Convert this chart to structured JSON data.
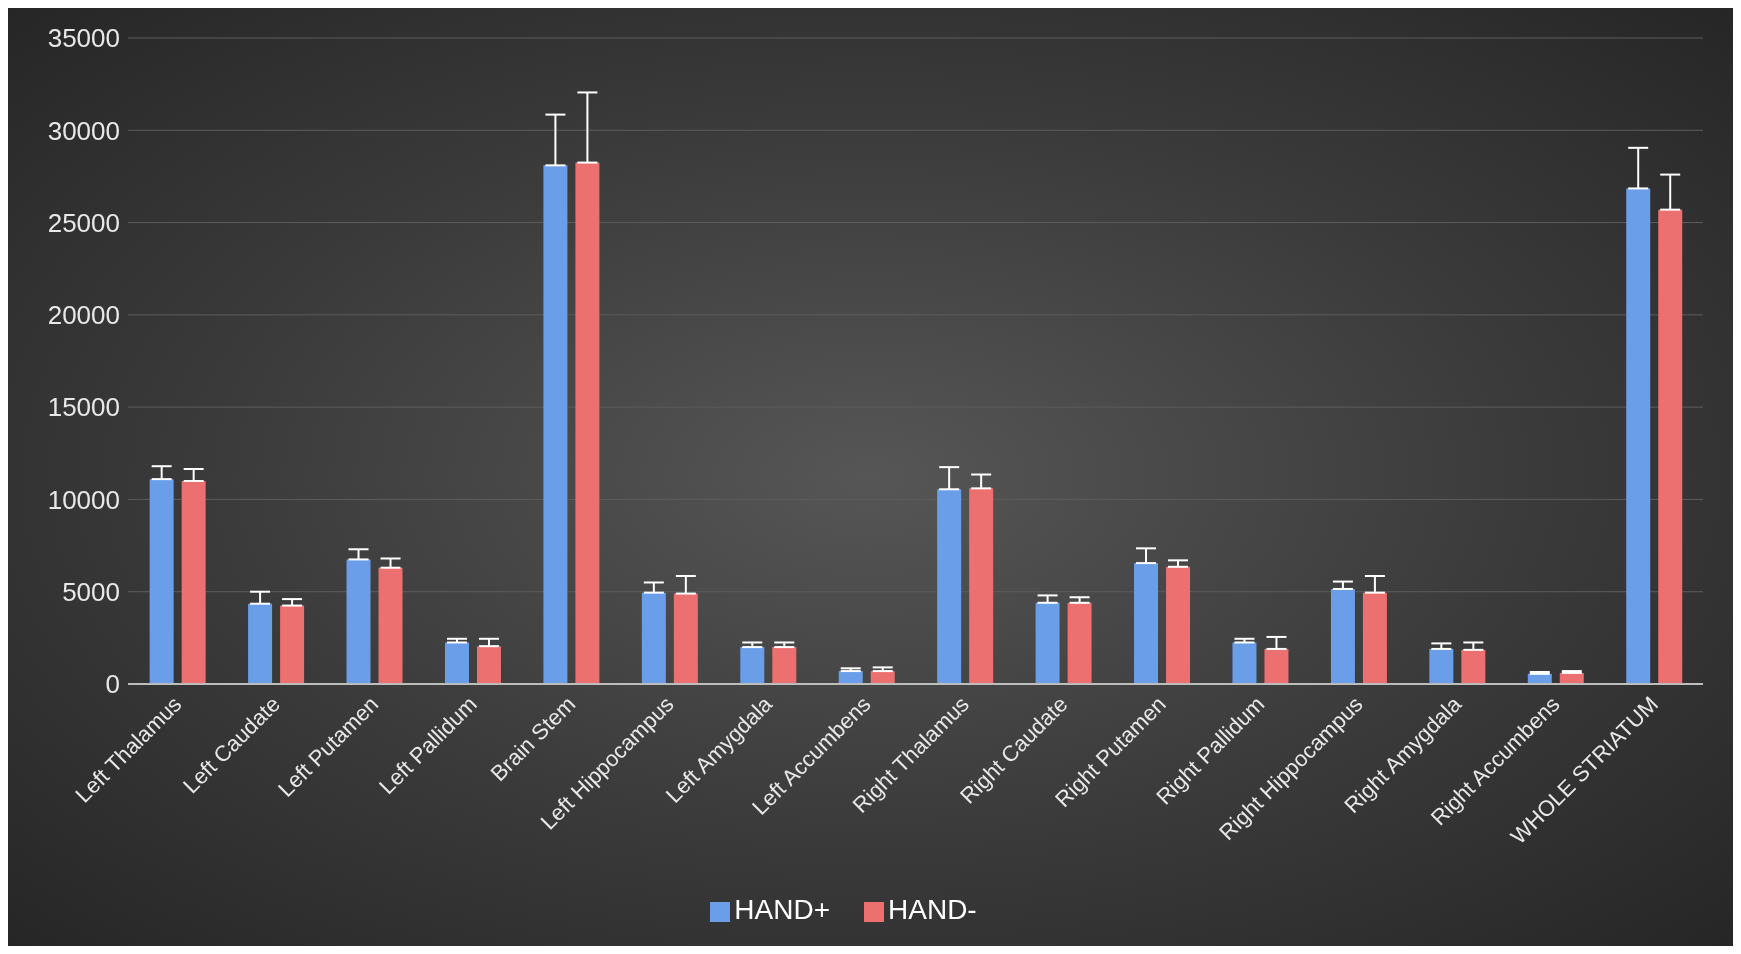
{
  "chart_data": {
    "type": "bar",
    "categories": [
      "Left Thalamus",
      "Left Caudate",
      "Left Putamen",
      "Left Pallidum",
      "Brain Stem",
      "Left Hippocampus",
      "Left Amygdala",
      "Left Accumbens",
      "Right Thalamus",
      "Right Caudate",
      "Right Putamen",
      "Right Pallidum",
      "Right Hippocampus",
      "Right Amygdala",
      "Right Accumbens",
      "WHOLE STRIATUM"
    ],
    "series": [
      {
        "name": "HAND+",
        "color": "#6a9ee8",
        "values": [
          11100,
          4350,
          6750,
          2250,
          28100,
          4950,
          2000,
          700,
          10550,
          4400,
          6550,
          2250,
          5150,
          1900,
          550,
          26850
        ],
        "errors": [
          [
            11100,
            11800
          ],
          [
            4350,
            5000
          ],
          [
            6750,
            7300
          ],
          [
            2250,
            2450
          ],
          [
            28100,
            30850
          ],
          [
            4950,
            5500
          ],
          [
            2000,
            2250
          ],
          [
            700,
            850
          ],
          [
            10550,
            11750
          ],
          [
            4400,
            4800
          ],
          [
            6550,
            7350
          ],
          [
            2250,
            2450
          ],
          [
            5150,
            5550
          ],
          [
            1900,
            2200
          ],
          [
            550,
            650
          ],
          [
            26850,
            29050
          ]
        ]
      },
      {
        "name": "HAND-",
        "color": "#ec7070",
        "values": [
          11000,
          4250,
          6300,
          2050,
          28250,
          4900,
          2000,
          700,
          10600,
          4400,
          6350,
          1900,
          4950,
          1850,
          600,
          25700
        ],
        "errors": [
          [
            11000,
            11650
          ],
          [
            4250,
            4600
          ],
          [
            6300,
            6800
          ],
          [
            2050,
            2450
          ],
          [
            28250,
            32050
          ],
          [
            4900,
            5850
          ],
          [
            2000,
            2250
          ],
          [
            700,
            900
          ],
          [
            10600,
            11350
          ],
          [
            4400,
            4700
          ],
          [
            6350,
            6700
          ],
          [
            1900,
            2550
          ],
          [
            4950,
            5850
          ],
          [
            1850,
            2250
          ],
          [
            600,
            700
          ],
          [
            25700,
            27600
          ]
        ]
      }
    ],
    "ylim": [
      0,
      35000
    ],
    "yticks": [
      0,
      5000,
      10000,
      15000,
      20000,
      25000,
      30000,
      35000
    ],
    "grid": "y",
    "legend": "bottom"
  }
}
